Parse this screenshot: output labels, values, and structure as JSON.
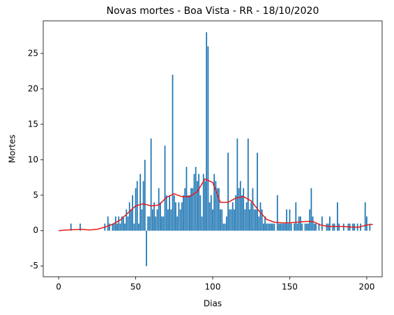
{
  "chart_data": {
    "type": "bar",
    "title": "Novas mortes - Boa Vista - RR - 18/10/2020",
    "xlabel": "Dias",
    "ylabel": "Mortes",
    "xlim": [
      -10,
      210
    ],
    "ylim": [
      -6.5,
      29.6
    ],
    "xticks": [
      0,
      50,
      100,
      150,
      200
    ],
    "yticks": [
      -5,
      0,
      5,
      10,
      15,
      20,
      25
    ],
    "series": [
      {
        "type": "bar",
        "color": "#1f77b4",
        "x": [
          0,
          1,
          2,
          3,
          4,
          5,
          6,
          7,
          8,
          9,
          10,
          11,
          12,
          13,
          14,
          15,
          16,
          17,
          18,
          19,
          20,
          21,
          22,
          23,
          24,
          25,
          26,
          27,
          28,
          29,
          30,
          31,
          32,
          33,
          34,
          35,
          36,
          37,
          38,
          39,
          40,
          41,
          42,
          43,
          44,
          45,
          46,
          47,
          48,
          49,
          50,
          51,
          52,
          53,
          54,
          55,
          56,
          57,
          58,
          59,
          60,
          61,
          62,
          63,
          64,
          65,
          66,
          67,
          68,
          69,
          70,
          71,
          72,
          73,
          74,
          75,
          76,
          77,
          78,
          79,
          80,
          81,
          82,
          83,
          84,
          85,
          86,
          87,
          88,
          89,
          90,
          91,
          92,
          93,
          94,
          95,
          96,
          97,
          98,
          99,
          100,
          101,
          102,
          103,
          104,
          105,
          106,
          107,
          108,
          109,
          110,
          111,
          112,
          113,
          114,
          115,
          116,
          117,
          118,
          119,
          120,
          121,
          122,
          123,
          124,
          125,
          126,
          127,
          128,
          129,
          130,
          131,
          132,
          133,
          134,
          135,
          136,
          137,
          138,
          139,
          140,
          141,
          142,
          143,
          144,
          145,
          146,
          147,
          148,
          149,
          150,
          151,
          152,
          153,
          154,
          155,
          156,
          157,
          158,
          159,
          160,
          161,
          162,
          163,
          164,
          165,
          166,
          167,
          168,
          169,
          170,
          171,
          172,
          173,
          174,
          175,
          176,
          177,
          178,
          179,
          180,
          181,
          182,
          183,
          184,
          185,
          186,
          187,
          188,
          189,
          190,
          191,
          192,
          193,
          194,
          195,
          196,
          197,
          198,
          199,
          200,
          201,
          202,
          203
        ],
        "values": [
          0,
          0,
          0,
          0,
          0,
          0,
          0,
          0,
          1,
          0,
          0,
          0,
          0,
          0,
          1,
          0,
          0,
          0,
          0,
          0,
          0,
          0,
          0,
          0,
          0,
          0,
          0,
          0,
          0,
          0,
          1,
          0,
          2,
          1,
          0,
          1,
          1,
          2,
          1,
          2,
          1,
          2,
          2,
          1,
          3,
          2,
          4,
          3,
          5,
          1,
          6,
          7,
          1,
          8,
          3,
          7,
          10,
          -5,
          2,
          2,
          13,
          3,
          4,
          2,
          3,
          6,
          4,
          2,
          2,
          12,
          5,
          3,
          5,
          3,
          22,
          5,
          4,
          2,
          4,
          3,
          4,
          5,
          6,
          9,
          5,
          5,
          6,
          6,
          8,
          9,
          7,
          8,
          5,
          2,
          8,
          7,
          28,
          26,
          4,
          5,
          3,
          8,
          7,
          6,
          6,
          3,
          3,
          1,
          1,
          2,
          11,
          3,
          3,
          4,
          3,
          5,
          13,
          6,
          7,
          5,
          6,
          3,
          4,
          13,
          3,
          4,
          6,
          3,
          3,
          11,
          2,
          4,
          3,
          1,
          2,
          1,
          1,
          1,
          1,
          1,
          1,
          0,
          5,
          1,
          1,
          1,
          1,
          1,
          3,
          1,
          3,
          1,
          0,
          1,
          4,
          1,
          2,
          2,
          1,
          0,
          1,
          1,
          1,
          3,
          6,
          2,
          1,
          1,
          0,
          1,
          0,
          2,
          0,
          0,
          1,
          1,
          2,
          0,
          1,
          1,
          0,
          4,
          1,
          0,
          0,
          1,
          0,
          0,
          1,
          1,
          0,
          1,
          1,
          0,
          1,
          0,
          1,
          0,
          0,
          4,
          2,
          0,
          1,
          0
        ]
      },
      {
        "type": "line",
        "color": "#e41a1c",
        "x": [
          0,
          5,
          10,
          15,
          20,
          25,
          30,
          35,
          40,
          45,
          50,
          55,
          60,
          65,
          70,
          75,
          80,
          85,
          90,
          95,
          100,
          105,
          110,
          115,
          120,
          125,
          130,
          135,
          140,
          145,
          150,
          155,
          160,
          165,
          170,
          175,
          180,
          185,
          190,
          195,
          200,
          204
        ],
        "values": [
          0,
          0.1,
          0.15,
          0.2,
          0.1,
          0.2,
          0.5,
          0.9,
          1.5,
          2.5,
          3.5,
          3.8,
          3.5,
          3.6,
          4.7,
          5.2,
          4.8,
          4.8,
          5.5,
          7.3,
          6.8,
          4.0,
          4.0,
          4.6,
          4.8,
          4.2,
          2.8,
          1.6,
          1.2,
          1.1,
          1.1,
          1.2,
          1.3,
          1.3,
          0.8,
          0.6,
          0.6,
          0.6,
          0.5,
          0.5,
          0.8,
          0.9
        ]
      }
    ]
  }
}
